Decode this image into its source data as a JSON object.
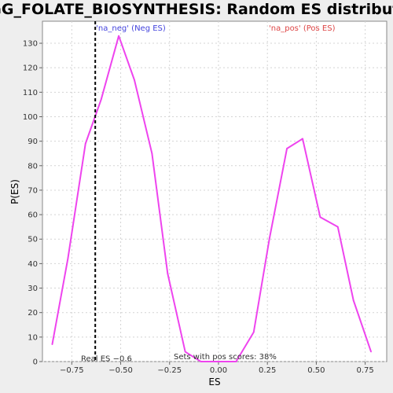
{
  "chart_data": {
    "type": "line",
    "title": "KEGG_FOLATE_BIOSYNTHESIS: Random ES distribution",
    "xlabel": "ES",
    "ylabel": "P(ES)",
    "xlim": [
      -0.9,
      0.86
    ],
    "ylim": [
      0,
      139
    ],
    "x_ticks": [
      -0.75,
      -0.5,
      -0.25,
      0.0,
      0.25,
      0.5,
      0.75
    ],
    "x_tick_labels": [
      "−0.75",
      "−0.50",
      "−0.25",
      "0.00",
      "0.25",
      "0.50",
      "0.75"
    ],
    "y_ticks": [
      0,
      10,
      20,
      30,
      40,
      50,
      60,
      70,
      80,
      90,
      100,
      110,
      120,
      130
    ],
    "y_tick_labels": [
      "0",
      "10",
      "20",
      "30",
      "40",
      "50",
      "60",
      "70",
      "80",
      "90",
      "100",
      "110",
      "120",
      "130"
    ],
    "grid": true,
    "series": [
      {
        "color": "#ee44ee",
        "x": [
          -0.85,
          -0.77,
          -0.68,
          -0.6,
          -0.51,
          -0.43,
          -0.34,
          -0.26,
          -0.17,
          -0.09,
          0.0,
          0.09,
          0.18,
          0.26,
          0.35,
          0.43,
          0.52,
          0.61,
          0.69,
          0.78
        ],
        "y": [
          7,
          42,
          89,
          107,
          133,
          115,
          85,
          36,
          4,
          0,
          0,
          0,
          12,
          50,
          87,
          91,
          59,
          55,
          25,
          4
        ]
      }
    ],
    "real_es": -0.63,
    "annotations": {
      "neg_label": "'na_neg' (Neg ES)",
      "pos_label": "'na_pos' (Pos ES)",
      "real_es_label": "Real ES −0.6",
      "sets_label": "Sets with pos scores: 38%"
    },
    "colors": {
      "neg_label": "#4444dd",
      "pos_label": "#dd4444",
      "line": "#ee44ee",
      "real_es_line": "#000000"
    }
  }
}
